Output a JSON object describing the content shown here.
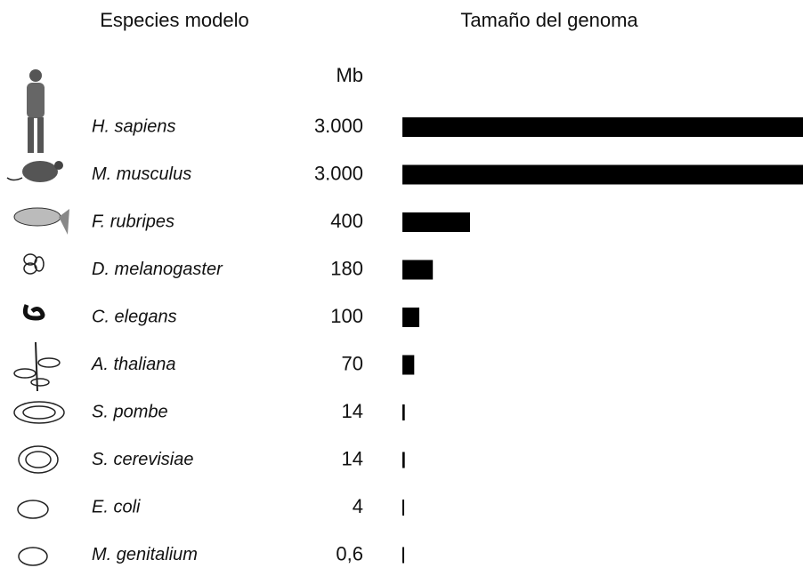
{
  "chart_data": {
    "type": "bar",
    "orientation": "horizontal",
    "category_header": "Especies modelo",
    "value_header": "Tamaño del genoma",
    "unit": "Mb",
    "categories": [
      "H. sapiens",
      "M. musculus",
      "F. rubripes",
      "D. melanogaster",
      "C. elegans",
      "A. thaliana",
      "S. pombe",
      "S. cerevisiae",
      "E. coli",
      "M. genitalium"
    ],
    "values": [
      3000,
      3000,
      400,
      180,
      100,
      70,
      14,
      14,
      4,
      0.6
    ],
    "value_labels": [
      "3.000",
      "3.000",
      "400",
      "180",
      "100",
      "70",
      "14",
      "14",
      "4",
      "0,6"
    ],
    "color": "#000000"
  }
}
